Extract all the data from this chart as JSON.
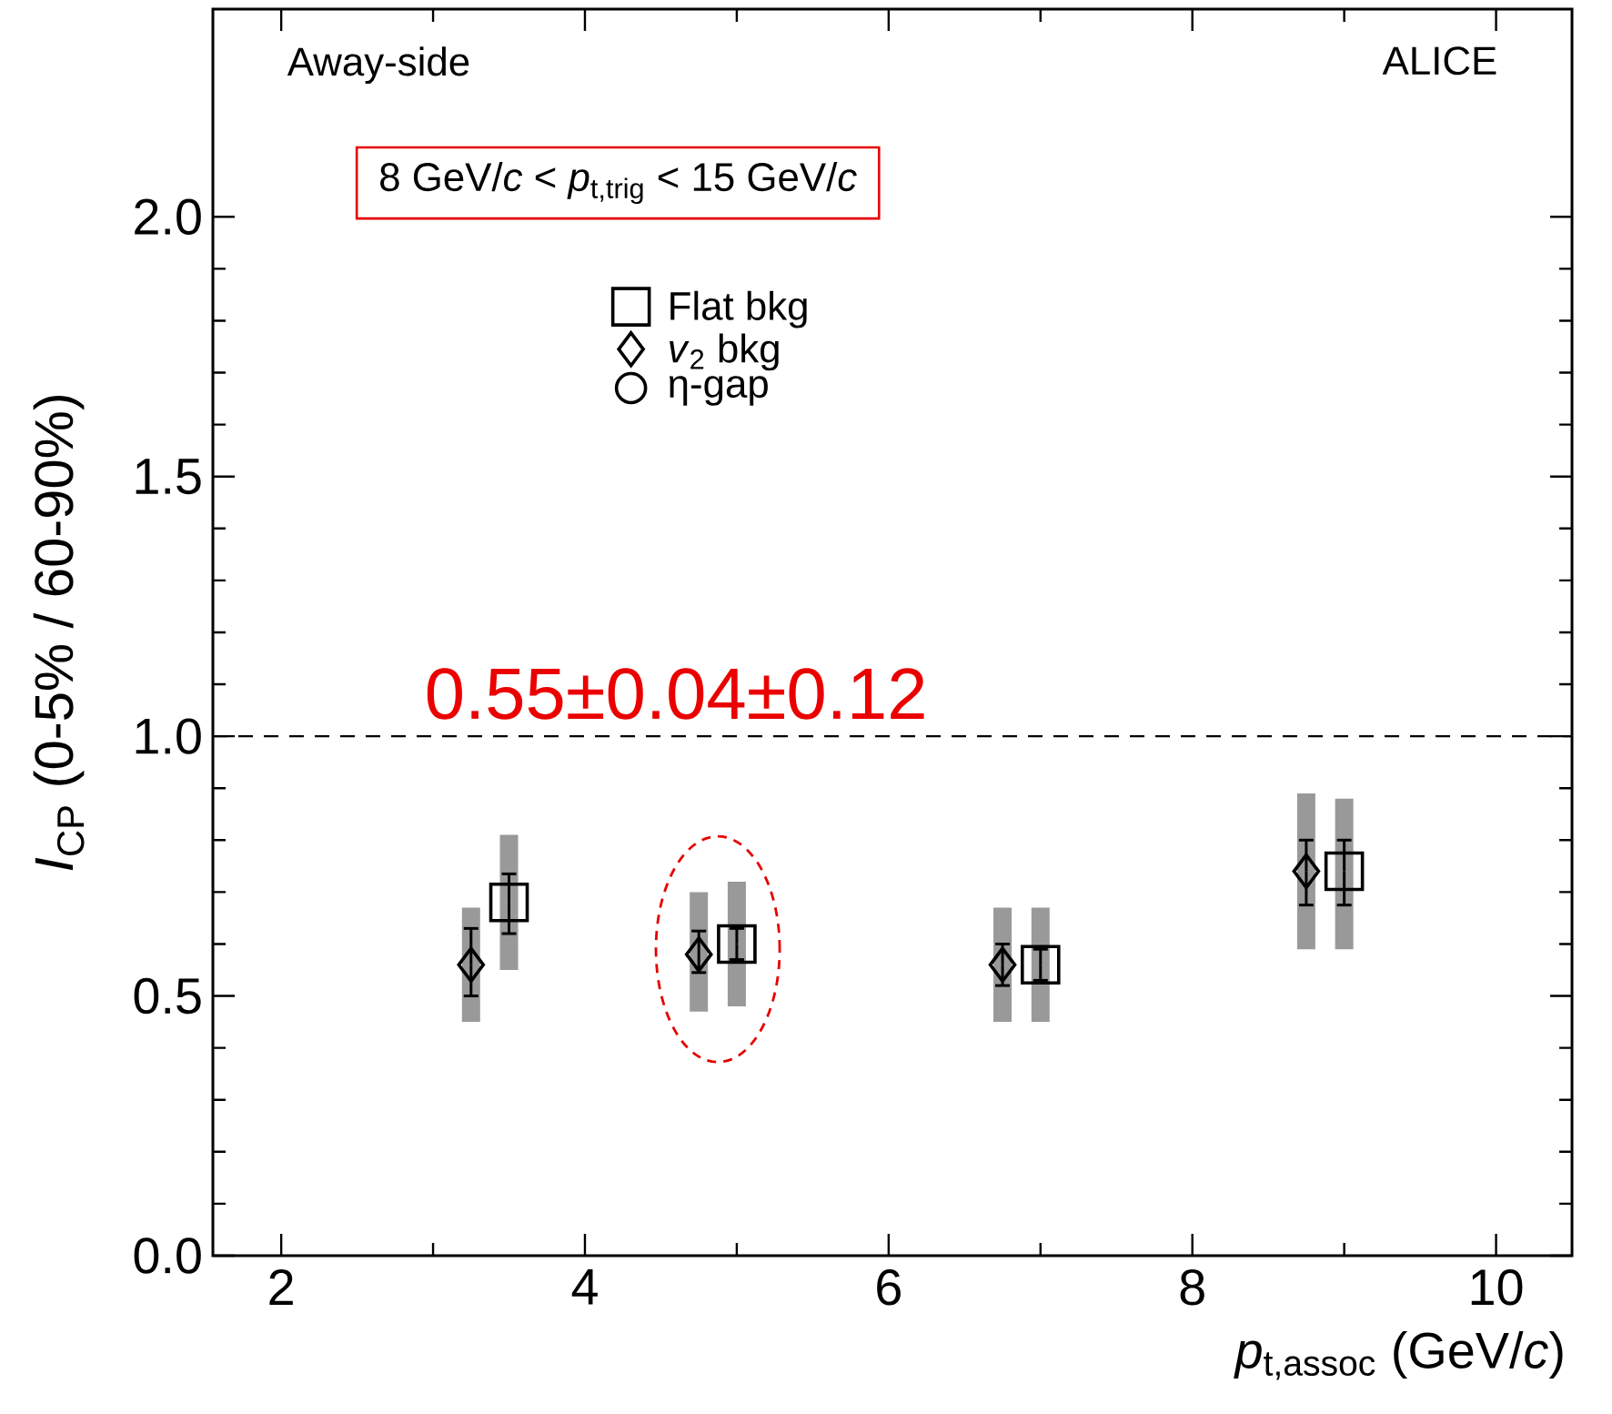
{
  "chart_data": {
    "type": "scatter",
    "xlabel": "*p*$_{t,assoc}$ (GeV/*c*)",
    "ylabel": "*I*$_{CP}$ (0-5% / 60-90%)",
    "xlim": [
      1.55,
      10.5
    ],
    "ylim": [
      0,
      2.4
    ],
    "xticks": [
      2,
      4,
      6,
      8,
      10
    ],
    "yticks": [
      {
        "value": 0,
        "label": "0.0"
      },
      0.5,
      {
        "value": 1,
        "label": "1.0"
      },
      1.5,
      {
        "value": 2,
        "label": "2.0"
      }
    ],
    "grid": false,
    "legend": "top",
    "annotations": [
      "Away-side",
      "ALICE",
      "8 GeV/*c* < *p*$_{t,trig}$ < 15 GeV/*c*",
      "0.55±0.04±0.12"
    ],
    "ref_lines": [
      {
        "axis": "y",
        "value": 1.0,
        "line_style": "dashed",
        "color": "#000000"
      }
    ],
    "series": [
      {
        "type": "bar",
        "color": "#999999",
        "x": [
          3.25,
          4.75,
          6.75,
          8.75
        ],
        "base": [
          0.45,
          0.47,
          0.45,
          0.59
        ],
        "values": [
          0.22,
          0.23,
          0.22,
          0.3
        ]
      },
      {
        "type": "bar",
        "color": "#999999",
        "x": [
          3.5,
          5,
          7,
          9
        ],
        "base": [
          0.55,
          0.48,
          0.45,
          0.59
        ],
        "values": [
          0.26,
          0.24,
          0.22,
          0.29
        ]
      },
      {
        "name": "Flat bkg",
        "marker": "square",
        "color": "#000000",
        "x": [
          3.5,
          5,
          7,
          9
        ],
        "values": [
          0.68,
          0.6,
          0.56,
          0.74
        ],
        "errors": [
          [
            0.62,
            0.735
          ],
          [
            0.57,
            0.63
          ],
          [
            0.53,
            0.59
          ],
          [
            0.675,
            0.8
          ]
        ]
      },
      {
        "name": "*v*$_{2}$ bkg",
        "marker": "diamond",
        "color": "#000000",
        "x": [
          3.25,
          4.75,
          6.75,
          8.75
        ],
        "values": [
          0.56,
          0.58,
          0.56,
          0.74
        ],
        "errors": [
          [
            0.5,
            0.63
          ],
          [
            0.545,
            0.625
          ],
          [
            0.52,
            0.6
          ],
          [
            0.675,
            0.8
          ]
        ]
      },
      {
        "name": "η-gap",
        "marker": "circle",
        "color": "#000000"
      }
    ]
  }
}
